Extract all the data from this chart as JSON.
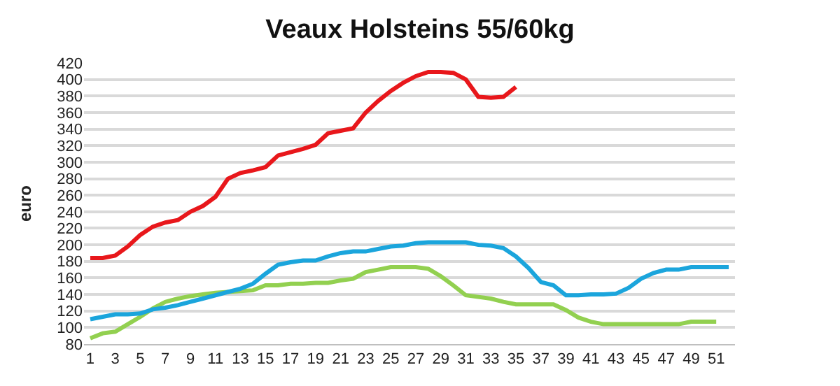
{
  "chart_data": {
    "type": "line",
    "title": "Veaux Holsteins 55/60kg",
    "ylabel": "euro",
    "x": [
      1,
      2,
      3,
      4,
      5,
      6,
      7,
      8,
      9,
      10,
      11,
      12,
      13,
      14,
      15,
      16,
      17,
      18,
      19,
      20,
      21,
      22,
      23,
      24,
      25,
      26,
      27,
      28,
      29,
      30,
      31,
      32,
      33,
      34,
      35,
      36,
      37,
      38,
      39,
      40,
      41,
      42,
      43,
      44,
      45,
      46,
      47,
      48,
      49,
      50,
      51,
      52
    ],
    "xlim": [
      0.5,
      52.5
    ],
    "xticks": [
      1,
      3,
      5,
      7,
      9,
      11,
      13,
      15,
      17,
      19,
      21,
      23,
      25,
      27,
      29,
      31,
      33,
      35,
      37,
      39,
      41,
      43,
      45,
      47,
      49,
      51
    ],
    "ylim": [
      80,
      420
    ],
    "yticks": [
      80,
      100,
      120,
      140,
      160,
      180,
      200,
      220,
      240,
      260,
      280,
      300,
      320,
      340,
      360,
      380,
      400,
      420
    ],
    "grid": "y",
    "line_style": "solid",
    "marker": "none",
    "series": [
      {
        "color": "#92d050",
        "values": [
          87,
          93,
          95,
          104,
          113,
          123,
          131,
          135,
          138,
          140,
          142,
          143,
          144,
          145,
          151,
          151,
          153,
          153,
          154,
          154,
          157,
          159,
          167,
          170,
          173,
          173,
          173,
          171,
          162,
          151,
          139,
          137,
          135,
          131,
          128,
          128,
          128,
          128,
          121,
          112,
          107,
          104,
          104,
          104,
          104,
          104,
          104,
          104,
          107,
          107,
          107,
          null
        ]
      },
      {
        "color": "#1ba5dc",
        "values": [
          110,
          113,
          116,
          116,
          117,
          122,
          124,
          127,
          131,
          135,
          139,
          143,
          147,
          153,
          165,
          176,
          179,
          181,
          181,
          186,
          190,
          192,
          192,
          195,
          198,
          199,
          202,
          203,
          203,
          203,
          203,
          200,
          199,
          196,
          186,
          172,
          155,
          151,
          139,
          139,
          140,
          140,
          141,
          148,
          159,
          166,
          170,
          170,
          173,
          173,
          173,
          173
        ]
      },
      {
        "color": "#e8171b",
        "values": [
          184,
          184,
          187,
          198,
          212,
          222,
          227,
          230,
          240,
          247,
          258,
          280,
          287,
          290,
          294,
          308,
          312,
          316,
          321,
          335,
          338,
          341,
          360,
          374,
          386,
          396,
          404,
          409,
          409,
          408,
          400,
          379,
          378,
          379,
          391,
          null,
          null,
          null,
          null,
          null,
          null,
          null,
          null,
          null,
          null,
          null,
          null,
          null,
          null,
          null,
          null,
          null
        ]
      }
    ]
  }
}
